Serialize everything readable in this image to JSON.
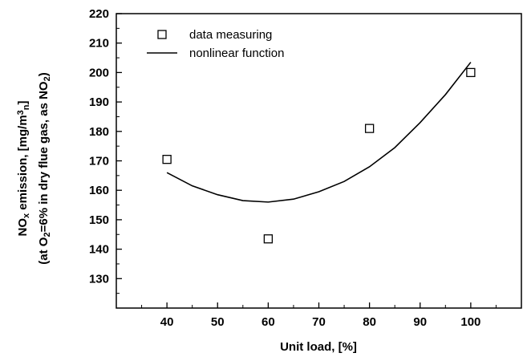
{
  "chart_data": {
    "type": "scatter",
    "xlabel": "Unit load, [%]",
    "ylabel_line1": {
      "parts": [
        {
          "t": "NO"
        },
        {
          "t": "x",
          "sub": true
        },
        {
          "t": " emission, [mg/m"
        },
        {
          "t": "3",
          "sup": true
        },
        {
          "t": "n",
          "sub": true
        },
        {
          "t": "]"
        }
      ]
    },
    "ylabel_line2": {
      "parts": [
        {
          "t": "(at O"
        },
        {
          "t": "2",
          "sub": true
        },
        {
          "t": "=6% in dry flue gas, as NO"
        },
        {
          "t": "2",
          "sub": true
        },
        {
          "t": ")"
        }
      ]
    },
    "xlim": [
      30,
      110
    ],
    "ylim": [
      120,
      220
    ],
    "xticks": [
      40,
      50,
      60,
      70,
      80,
      90,
      100
    ],
    "yticks": [
      130,
      140,
      150,
      160,
      170,
      180,
      190,
      200,
      210,
      220
    ],
    "legend_position": "top-left",
    "series": [
      {
        "name": "data measuring",
        "kind": "scatter",
        "marker": "open-square",
        "x": [
          40,
          60,
          80,
          100
        ],
        "y": [
          170.5,
          143.5,
          181,
          200
        ]
      },
      {
        "name": "nonlinear function",
        "kind": "line",
        "x": [
          40,
          45,
          50,
          55,
          60,
          65,
          70,
          75,
          80,
          85,
          90,
          95,
          100
        ],
        "y": [
          166,
          161.5,
          158.5,
          156.5,
          156,
          157,
          159.5,
          163,
          168,
          174.5,
          183,
          192.5,
          203.5
        ]
      }
    ]
  }
}
